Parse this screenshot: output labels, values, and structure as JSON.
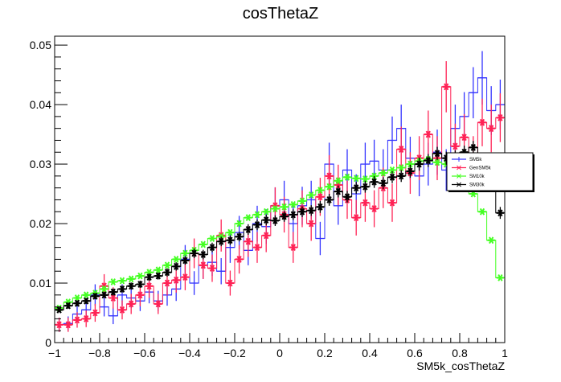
{
  "chart_data": {
    "type": "line",
    "title": "cosThetaZ",
    "xlabel": "SM5k_cosThetaZ",
    "ylabel": "",
    "xlim": [
      -1,
      1
    ],
    "ylim": [
      0,
      0.0515
    ],
    "x_ticks": [
      "−1",
      "−0.8",
      "−0.6",
      "−0.4",
      "−0.2",
      "0",
      "0.2",
      "0.4",
      "0.6",
      "0.8",
      "1"
    ],
    "y_ticks": [
      "0",
      "0.01",
      "0.02",
      "0.03",
      "0.04",
      "0.05"
    ],
    "legend_position": "right",
    "x": [
      -0.98,
      -0.94,
      -0.9,
      -0.86,
      -0.82,
      -0.78,
      -0.74,
      -0.7,
      -0.66,
      -0.62,
      -0.58,
      -0.54,
      -0.5,
      -0.46,
      -0.42,
      -0.38,
      -0.34,
      -0.3,
      -0.26,
      -0.22,
      -0.18,
      -0.14,
      -0.1,
      -0.06,
      -0.02,
      0.02,
      0.06,
      0.1,
      0.14,
      0.18,
      0.22,
      0.26,
      0.3,
      0.34,
      0.38,
      0.42,
      0.46,
      0.5,
      0.54,
      0.58,
      0.62,
      0.66,
      0.7,
      0.74,
      0.78,
      0.82,
      0.86,
      0.9,
      0.94,
      0.98
    ],
    "series": [
      {
        "name": "SM5k",
        "color": "#3333ff",
        "marker": "none",
        "values": [
          0.003,
          0.0032,
          0.0048,
          0.0055,
          0.008,
          0.006,
          0.0045,
          0.008,
          0.0075,
          0.007,
          0.0085,
          0.007,
          0.008,
          0.009,
          0.014,
          0.01,
          0.013,
          0.0135,
          0.012,
          0.016,
          0.0185,
          0.0155,
          0.02,
          0.0195,
          0.023,
          0.024,
          0.02,
          0.023,
          0.024,
          0.0175,
          0.03,
          0.023,
          0.029,
          0.025,
          0.03,
          0.0305,
          0.029,
          0.034,
          0.036,
          0.031,
          0.028,
          0.03,
          0.032,
          0.029,
          0.036,
          0.038,
          0.042,
          0.0445,
          0.039,
          0.04
        ],
        "errors": [
          0.0012,
          0.0012,
          0.0014,
          0.0015,
          0.0018,
          0.0016,
          0.0014,
          0.0018,
          0.0017,
          0.0017,
          0.0019,
          0.0017,
          0.0018,
          0.002,
          0.0024,
          0.002,
          0.0023,
          0.0023,
          0.0022,
          0.0026,
          0.0028,
          0.0025,
          0.003,
          0.0029,
          0.0031,
          0.0032,
          0.003,
          0.0032,
          0.0032,
          0.0028,
          0.0036,
          0.0032,
          0.0035,
          0.0033,
          0.0036,
          0.0036,
          0.0035,
          0.004,
          0.004,
          0.0036,
          0.0034,
          0.0036,
          0.0038,
          0.0035,
          0.004,
          0.0041,
          0.0043,
          0.0045,
          0.0041,
          0.0042
        ]
      },
      {
        "name": "GenSM5k",
        "color": "#ff2255",
        "marker": "star",
        "values": [
          0.003,
          0.003,
          0.0038,
          0.004,
          0.005,
          0.0095,
          0.0075,
          0.0055,
          0.0065,
          0.008,
          0.0095,
          0.0065,
          0.01,
          0.0105,
          0.011,
          0.015,
          0.013,
          0.0125,
          0.018,
          0.01,
          0.014,
          0.017,
          0.016,
          0.018,
          0.023,
          0.0215,
          0.016,
          0.0225,
          0.02,
          0.0245,
          0.028,
          0.0265,
          0.024,
          0.021,
          0.0235,
          0.0225,
          0.026,
          0.0235,
          0.0325,
          0.0285,
          0.031,
          0.035,
          0.031,
          0.043,
          0.033,
          0.0345,
          0.031,
          0.037,
          0.036,
          0.0378
        ],
        "errors": [
          0.0012,
          0.0012,
          0.0013,
          0.0014,
          0.0015,
          0.002,
          0.0018,
          0.0016,
          0.0017,
          0.0019,
          0.002,
          0.0017,
          0.0021,
          0.0021,
          0.0022,
          0.0025,
          0.0023,
          0.0023,
          0.0027,
          0.0021,
          0.0024,
          0.0026,
          0.0026,
          0.0028,
          0.0031,
          0.003,
          0.0026,
          0.0031,
          0.0029,
          0.0032,
          0.0035,
          0.0034,
          0.0032,
          0.003,
          0.0032,
          0.0031,
          0.0034,
          0.0032,
          0.0038,
          0.0035,
          0.0037,
          0.004,
          0.0037,
          0.0043,
          0.0038,
          0.0039,
          0.0037,
          0.004,
          0.004,
          0.0041
        ]
      },
      {
        "name": "SM10k",
        "color": "#44ff22",
        "marker": "star",
        "values": [
          0.0058,
          0.0068,
          0.0075,
          0.008,
          0.0083,
          0.009,
          0.0102,
          0.0104,
          0.0107,
          0.0112,
          0.0118,
          0.0122,
          0.013,
          0.014,
          0.015,
          0.0155,
          0.0165,
          0.0175,
          0.0178,
          0.0185,
          0.02,
          0.021,
          0.0215,
          0.022,
          0.0225,
          0.0228,
          0.0232,
          0.0238,
          0.0248,
          0.0256,
          0.0262,
          0.0272,
          0.0278,
          0.0276,
          0.0275,
          0.028,
          0.0285,
          0.029,
          0.0294,
          0.03,
          0.0305,
          0.0308,
          0.0303,
          0.03,
          0.029,
          0.027,
          0.025,
          0.022,
          0.0172,
          0.0109
        ],
        "errors": [
          0,
          0,
          0,
          0,
          0,
          0,
          0,
          0,
          0,
          0,
          0,
          0,
          0,
          0,
          0,
          0,
          0,
          0,
          0,
          0,
          0,
          0,
          0,
          0,
          0,
          0,
          0,
          0,
          0,
          0,
          0,
          0,
          0,
          0,
          0,
          0,
          0,
          0,
          0,
          0,
          0,
          0,
          0,
          0,
          0,
          0,
          0,
          0,
          0,
          0
        ]
      },
      {
        "name": "SM30k",
        "color": "#000000",
        "marker": "star",
        "values": [
          0.0055,
          0.0062,
          0.0066,
          0.007,
          0.0078,
          0.008,
          0.0085,
          0.009,
          0.0095,
          0.0098,
          0.011,
          0.0112,
          0.0118,
          0.0128,
          0.0138,
          0.015,
          0.0148,
          0.016,
          0.017,
          0.0172,
          0.0178,
          0.019,
          0.0198,
          0.0206,
          0.0205,
          0.0212,
          0.0215,
          0.022,
          0.0222,
          0.0228,
          0.024,
          0.0254,
          0.0245,
          0.026,
          0.0262,
          0.027,
          0.0268,
          0.0278,
          0.028,
          0.0288,
          0.03,
          0.0306,
          0.0318,
          0.031,
          0.0312,
          0.032,
          0.0328,
          0.0305,
          0.03,
          0.0218
        ],
        "errors": [
          0.0004,
          0.0005,
          0.0005,
          0.0005,
          0.0005,
          0.0005,
          0.0006,
          0.0006,
          0.0006,
          0.0006,
          0.0006,
          0.0006,
          0.0007,
          0.0007,
          0.0007,
          0.0008,
          0.0008,
          0.0008,
          0.0008,
          0.0008,
          0.0008,
          0.0009,
          0.0009,
          0.0009,
          0.0009,
          0.0009,
          0.0009,
          0.0009,
          0.0009,
          0.001,
          0.001,
          0.001,
          0.001,
          0.001,
          0.001,
          0.001,
          0.001,
          0.001,
          0.001,
          0.0011,
          0.0011,
          0.0011,
          0.0011,
          0.0011,
          0.0011,
          0.0011,
          0.0011,
          0.0011,
          0.0011,
          0.001
        ]
      }
    ]
  }
}
